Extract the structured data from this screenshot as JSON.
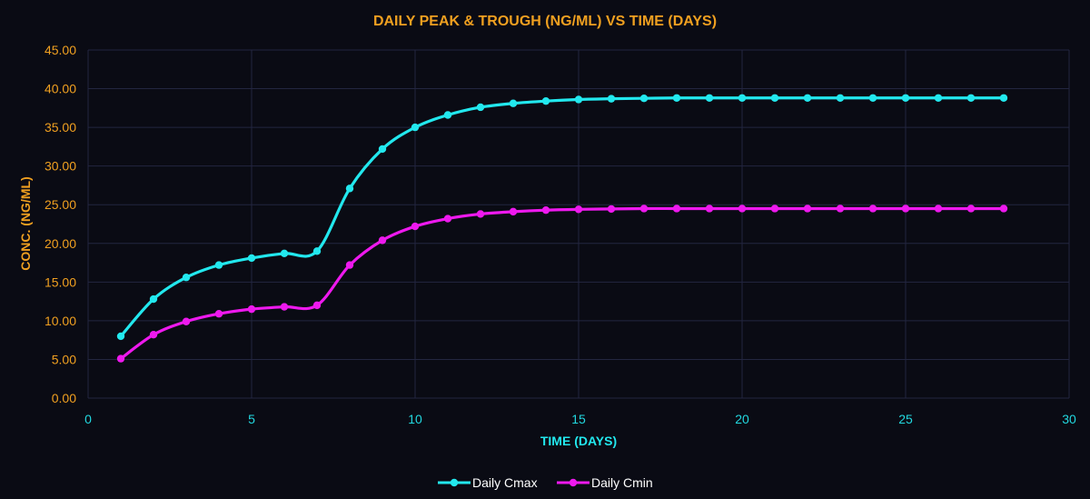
{
  "chart_data": {
    "type": "line",
    "title": "DAILY PEAK & TROUGH (NG/ML) VS TIME (DAYS)",
    "xlabel": "TIME (DAYS)",
    "ylabel": "CONC. (NG/ML)",
    "xlim": [
      0,
      30
    ],
    "ylim": [
      0,
      45
    ],
    "xticks": [
      0,
      5,
      10,
      15,
      20,
      25,
      30
    ],
    "yticks": [
      "0.00",
      "5.00",
      "10.00",
      "15.00",
      "20.00",
      "25.00",
      "30.00",
      "35.00",
      "40.00",
      "45.00"
    ],
    "grid": true,
    "legend_position": "bottom",
    "x": [
      1,
      2,
      3,
      4,
      5,
      6,
      7,
      8,
      9,
      10,
      11,
      12,
      13,
      14,
      15,
      16,
      17,
      18,
      19,
      20,
      21,
      22,
      23,
      24,
      25,
      26,
      27,
      28
    ],
    "series": [
      {
        "name": "Daily Cmax",
        "color": "#22e8ee",
        "values": [
          8.0,
          12.8,
          15.6,
          17.2,
          18.1,
          18.7,
          19.0,
          27.1,
          32.2,
          35.0,
          36.6,
          37.6,
          38.1,
          38.4,
          38.6,
          38.7,
          38.75,
          38.8,
          38.8,
          38.8,
          38.8,
          38.8,
          38.8,
          38.8,
          38.8,
          38.8,
          38.8,
          38.8
        ]
      },
      {
        "name": "Daily Cmin",
        "color": "#ee19ee",
        "values": [
          5.1,
          8.2,
          9.9,
          10.9,
          11.5,
          11.8,
          12.0,
          17.2,
          20.4,
          22.2,
          23.2,
          23.8,
          24.1,
          24.3,
          24.4,
          24.45,
          24.5,
          24.5,
          24.5,
          24.5,
          24.5,
          24.5,
          24.5,
          24.5,
          24.5,
          24.5,
          24.5,
          24.5
        ]
      }
    ],
    "colors": {
      "background": "#0a0b14",
      "title": "#f0a020",
      "x_tick": "#22d8e0",
      "y_tick": "#f0a020",
      "xlabel": "#22e8ee",
      "ylabel": "#f0a020",
      "grid": "#232640"
    }
  }
}
